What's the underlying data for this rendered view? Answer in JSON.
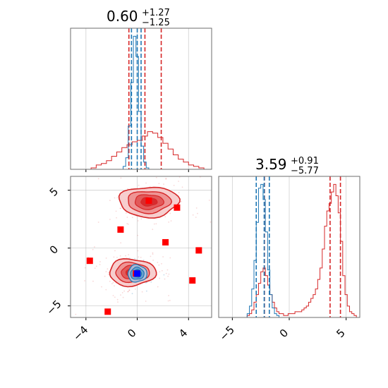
{
  "colors": {
    "red": "#d62728",
    "blue": "#1f77b4",
    "marker_red": "#ff0000",
    "marker_blue": "#0000ff",
    "grid": "#b0b0b0",
    "spine": "#6e6e6e"
  },
  "chart_data": [
    {
      "type": "histogram",
      "panel": "marginal-parameter-1",
      "title_main": "0.60",
      "title_sup": "+1.27",
      "title_sub": "−1.25",
      "xlim": [
        -5.2,
        5.8
      ],
      "x_ticks": [
        -4,
        0,
        4
      ],
      "grid": true,
      "series": [
        {
          "color": "red",
          "bins_x": [
            -4.6,
            -4.2,
            -3.8,
            -3.4,
            -3.0,
            -2.6,
            -2.2,
            -1.8,
            -1.4,
            -1.0,
            -0.6,
            -0.2,
            0.2,
            0.6,
            1.0,
            1.4,
            1.8,
            2.2,
            2.6,
            3.0,
            3.4,
            3.8,
            4.2,
            4.6,
            5.0,
            5.4
          ],
          "values": [
            0.0,
            0.0,
            0.0,
            0.01,
            0.03,
            0.04,
            0.06,
            0.09,
            0.12,
            0.15,
            0.17,
            0.19,
            0.2,
            0.23,
            0.26,
            0.25,
            0.22,
            0.18,
            0.14,
            0.1,
            0.07,
            0.05,
            0.03,
            0.02,
            0.01,
            0.0
          ],
          "quantile_lines": [
            -0.65,
            0.6,
            1.87
          ]
        },
        {
          "color": "blue",
          "bins_x": [
            -1.0,
            -0.8,
            -0.6,
            -0.4,
            -0.2,
            0.0,
            0.2,
            0.4,
            0.6,
            0.8
          ],
          "values": [
            0.02,
            0.08,
            0.3,
            0.6,
            0.92,
            0.78,
            0.4,
            0.16,
            0.05,
            0.01
          ],
          "quantile_lines": [
            -0.45,
            0.0,
            0.3
          ]
        }
      ]
    },
    {
      "type": "histogram",
      "panel": "marginal-parameter-2",
      "title_main": "3.59",
      "title_sup": "+0.91",
      "title_sub": "−5.77",
      "xlim": [
        -6.2,
        6.2
      ],
      "x_ticks": [
        -5,
        0,
        5
      ],
      "grid": true,
      "series": [
        {
          "color": "red",
          "bins_x": [
            -3.6,
            -3.4,
            -3.2,
            -3.0,
            -2.8,
            -2.6,
            -2.4,
            -2.2,
            -2.0,
            -1.8,
            -1.6,
            -1.4,
            -1.2,
            -1.0,
            -0.8,
            -0.6,
            -0.4,
            -0.2,
            0.0,
            0.2,
            0.4,
            0.6,
            0.8,
            1.0,
            1.2,
            1.4,
            1.6,
            1.8,
            2.0,
            2.2,
            2.4,
            2.6,
            2.8,
            3.0,
            3.2,
            3.4,
            3.6,
            3.8,
            4.0,
            4.2,
            4.4,
            4.6,
            4.8,
            5.0,
            5.2,
            5.4,
            5.6,
            5.8
          ],
          "values": [
            0.01,
            0.02,
            0.04,
            0.08,
            0.12,
            0.18,
            0.24,
            0.26,
            0.22,
            0.17,
            0.12,
            0.08,
            0.05,
            0.03,
            0.02,
            0.02,
            0.01,
            0.01,
            0.02,
            0.02,
            0.02,
            0.03,
            0.03,
            0.03,
            0.04,
            0.05,
            0.06,
            0.08,
            0.1,
            0.12,
            0.15,
            0.2,
            0.26,
            0.36,
            0.48,
            0.56,
            0.6,
            0.66,
            0.7,
            0.64,
            0.55,
            0.4,
            0.22,
            0.12,
            0.06,
            0.03,
            0.02,
            0.01
          ],
          "quantile_lines": [
            -2.18,
            3.59,
            4.5
          ]
        },
        {
          "color": "blue",
          "bins_x": [
            -3.6,
            -3.4,
            -3.2,
            -3.0,
            -2.8,
            -2.6,
            -2.4,
            -2.2,
            -2.0,
            -1.8,
            -1.6,
            -1.4,
            -1.2,
            -1.0
          ],
          "values": [
            0.02,
            0.06,
            0.15,
            0.3,
            0.5,
            0.68,
            0.7,
            0.62,
            0.45,
            0.25,
            0.12,
            0.05,
            0.02,
            0.01
          ],
          "quantile_lines": [
            -2.9,
            -2.2,
            -1.75
          ]
        }
      ]
    },
    {
      "type": "contour",
      "panel": "joint-parameter-1-vs-parameter-2",
      "xlim": [
        -5.2,
        5.8
      ],
      "ylim": [
        -6.0,
        6.2
      ],
      "x_ticks": [
        -4,
        0,
        4
      ],
      "y_ticks": [
        5,
        0,
        -5
      ],
      "grid": true,
      "red_modes": [
        {
          "cx": 0.9,
          "cy": 4.0,
          "sx": 1.6,
          "sy": 0.9
        },
        {
          "cx": -0.4,
          "cy": -2.1,
          "sx": 1.25,
          "sy": 0.8
        }
      ],
      "blue_mode": {
        "cx": 0.0,
        "cy": -2.2,
        "sx": 0.55,
        "sy": 0.55
      },
      "red_markers": [
        {
          "x": 0.9,
          "y": 4.1
        },
        {
          "x": 3.1,
          "y": 3.5
        },
        {
          "x": -1.3,
          "y": 1.6
        },
        {
          "x": 2.2,
          "y": 0.5
        },
        {
          "x": 4.8,
          "y": -0.2
        },
        {
          "x": -3.7,
          "y": -1.1
        },
        {
          "x": 4.3,
          "y": -2.8
        },
        {
          "x": -2.3,
          "y": -5.5
        },
        {
          "x": -0.1,
          "y": -2.2
        }
      ],
      "blue_marker": {
        "x": 0.0,
        "y": -2.2
      }
    }
  ]
}
